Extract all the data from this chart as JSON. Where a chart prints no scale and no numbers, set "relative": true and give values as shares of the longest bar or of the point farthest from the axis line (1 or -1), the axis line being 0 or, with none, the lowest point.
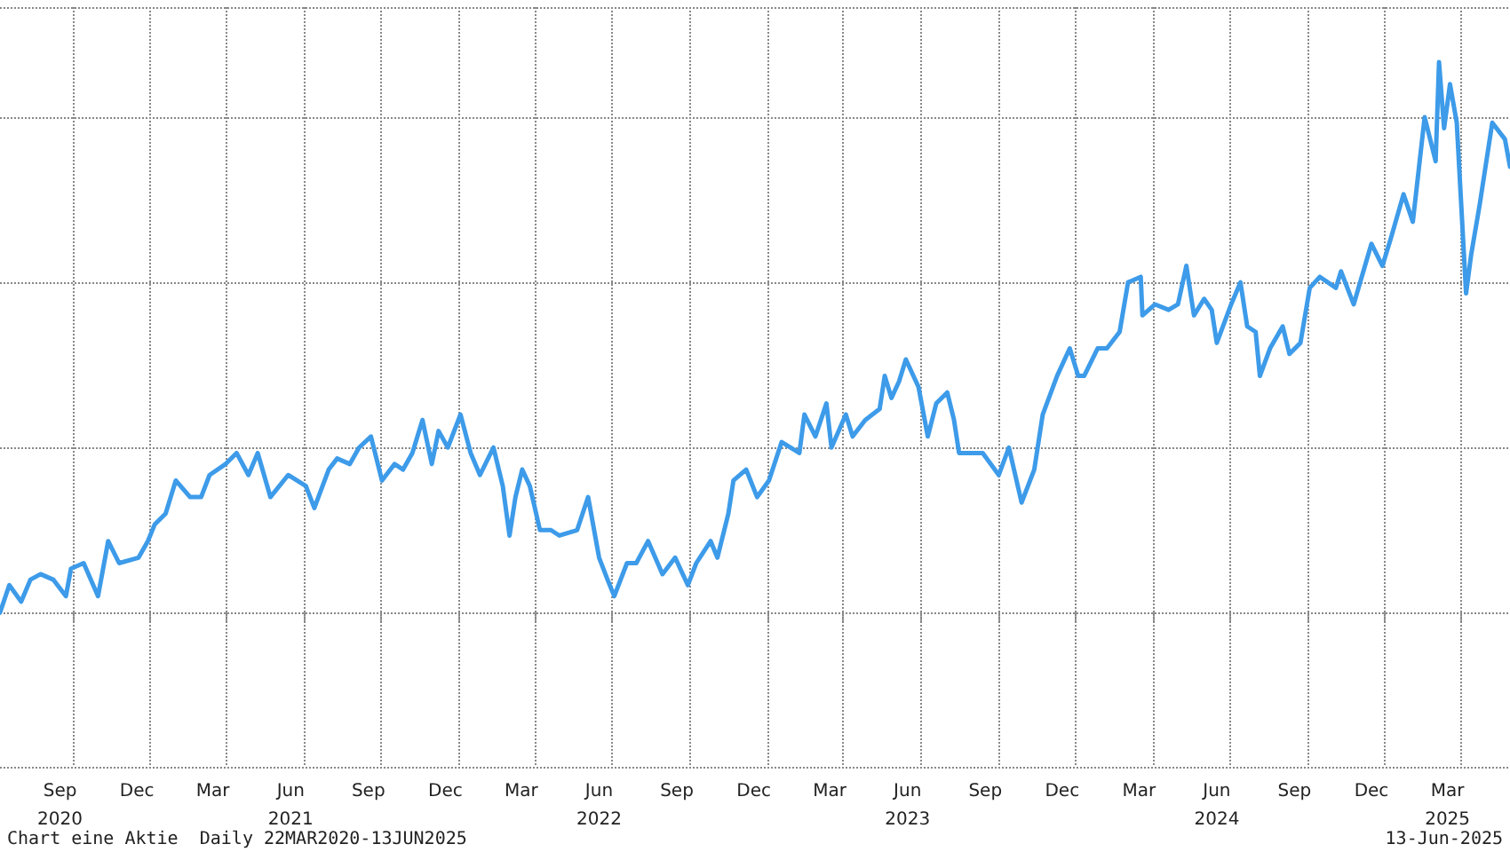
{
  "chart_data": {
    "type": "line",
    "relative": true,
    "color": "#3d9be9",
    "grid": true,
    "line_style": "solid",
    "marker": "none",
    "xlim": [
      "2020-07-07",
      "2025-05-29"
    ],
    "xticks": [
      {
        "value": "2020-09-16",
        "label": "Sep\n2020"
      },
      {
        "value": "2020-10-01",
        "label": null
      },
      {
        "value": "2020-12-16",
        "label": "Dec"
      },
      {
        "value": "2021-01-01",
        "label": null
      },
      {
        "value": "2021-03-16",
        "label": "Mar"
      },
      {
        "value": "2021-04-01",
        "label": null
      },
      {
        "value": "2021-06-16",
        "label": "Jun\n2021"
      },
      {
        "value": "2021-07-01",
        "label": null
      },
      {
        "value": "2021-09-16",
        "label": "Sep"
      },
      {
        "value": "2021-10-01",
        "label": null
      },
      {
        "value": "2021-12-16",
        "label": "Dec"
      },
      {
        "value": "2022-01-01",
        "label": null
      },
      {
        "value": "2022-03-16",
        "label": "Mar"
      },
      {
        "value": "2022-04-01",
        "label": null
      },
      {
        "value": "2022-06-16",
        "label": "Jun\n2022"
      },
      {
        "value": "2022-07-01",
        "label": null
      },
      {
        "value": "2022-09-16",
        "label": "Sep"
      },
      {
        "value": "2022-10-01",
        "label": null
      },
      {
        "value": "2022-12-16",
        "label": "Dec"
      },
      {
        "value": "2023-01-01",
        "label": null
      },
      {
        "value": "2023-03-16",
        "label": "Mar"
      },
      {
        "value": "2023-04-01",
        "label": null
      },
      {
        "value": "2023-06-16",
        "label": "Jun\n2023"
      },
      {
        "value": "2023-07-01",
        "label": null
      },
      {
        "value": "2023-09-16",
        "label": "Sep"
      },
      {
        "value": "2023-10-01",
        "label": null
      },
      {
        "value": "2023-12-16",
        "label": "Dec"
      },
      {
        "value": "2024-01-01",
        "label": null
      },
      {
        "value": "2024-03-16",
        "label": "Mar"
      },
      {
        "value": "2024-04-01",
        "label": null
      },
      {
        "value": "2024-06-16",
        "label": "Jun\n2024"
      },
      {
        "value": "2024-07-01",
        "label": null
      },
      {
        "value": "2024-09-16",
        "label": "Sep"
      },
      {
        "value": "2024-10-01",
        "label": null
      },
      {
        "value": "2024-12-16",
        "label": "Dec"
      },
      {
        "value": "2025-01-01",
        "label": null
      },
      {
        "value": "2025-03-16",
        "label": "Mar\n2025"
      },
      {
        "value": "2025-04-01",
        "label": null
      }
    ],
    "x": [
      "2020-07-07",
      "2020-07-18",
      "2020-08-01",
      "2020-08-12",
      "2020-08-24",
      "2020-09-08",
      "2020-09-23",
      "2020-09-29",
      "2020-10-14",
      "2020-10-31",
      "2020-11-12",
      "2020-11-25",
      "2020-12-18",
      "2020-12-29",
      "2021-01-06",
      "2021-01-19",
      "2021-01-31",
      "2021-02-17",
      "2021-03-02",
      "2021-03-12",
      "2021-03-31",
      "2021-04-13",
      "2021-04-27",
      "2021-05-08",
      "2021-05-23",
      "2021-06-13",
      "2021-07-04",
      "2021-07-14",
      "2021-07-31",
      "2021-08-10",
      "2021-08-25",
      "2021-09-05",
      "2021-09-19",
      "2021-10-02",
      "2021-10-17",
      "2021-10-27",
      "2021-11-07",
      "2021-11-19",
      "2021-11-30",
      "2021-12-08",
      "2021-12-19",
      "2022-01-03",
      "2022-01-15",
      "2022-01-26",
      "2022-02-11",
      "2022-02-22",
      "2022-03-02",
      "2022-03-09",
      "2022-03-17",
      "2022-03-26",
      "2022-04-07",
      "2022-04-20",
      "2022-04-30",
      "2022-05-21",
      "2022-06-03",
      "2022-06-16",
      "2022-06-26",
      "2022-07-04",
      "2022-07-19",
      "2022-07-30",
      "2022-08-13",
      "2022-08-30",
      "2022-09-14",
      "2022-09-29",
      "2022-10-09",
      "2022-10-26",
      "2022-11-03",
      "2022-11-16",
      "2022-11-22",
      "2022-12-07",
      "2022-12-20",
      "2023-01-03",
      "2023-01-18",
      "2023-02-08",
      "2023-02-14",
      "2023-02-27",
      "2023-03-12",
      "2023-03-18",
      "2023-04-04",
      "2023-04-12",
      "2023-04-27",
      "2023-05-14",
      "2023-05-20",
      "2023-05-28",
      "2023-06-06",
      "2023-06-14",
      "2023-06-29",
      "2023-07-10",
      "2023-07-20",
      "2023-08-02",
      "2023-08-10",
      "2023-08-16",
      "2023-08-31",
      "2023-09-13",
      "2023-10-02",
      "2023-10-14",
      "2023-10-29",
      "2023-11-13",
      "2023-11-23",
      "2023-12-10",
      "2023-12-25",
      "2024-01-04",
      "2024-01-11",
      "2024-01-27",
      "2024-02-07",
      "2024-02-22",
      "2024-03-03",
      "2024-03-18",
      "2024-03-20",
      "2024-04-04",
      "2024-04-20",
      "2024-05-01",
      "2024-05-11",
      "2024-05-20",
      "2024-06-01",
      "2024-06-10",
      "2024-06-16",
      "2024-07-03",
      "2024-07-14",
      "2024-07-22",
      "2024-08-01",
      "2024-08-06",
      "2024-08-18",
      "2024-09-02",
      "2024-09-10",
      "2024-09-23",
      "2024-10-04",
      "2024-10-16",
      "2024-11-04",
      "2024-11-10",
      "2024-11-25",
      "2024-12-16",
      "2024-12-29",
      "2025-01-08",
      "2025-01-23",
      "2025-02-03",
      "2025-02-17",
      "2025-03-02",
      "2025-03-06",
      "2025-03-12",
      "2025-03-19",
      "2025-03-27",
      "2025-04-07",
      "2025-04-13",
      "2025-04-23",
      "2025-05-08",
      "2025-05-23",
      "2025-05-29"
    ],
    "values": [
      0.0,
      0.05,
      0.02,
      0.06,
      0.07,
      0.06,
      0.03,
      0.08,
      0.09,
      0.03,
      0.13,
      0.09,
      0.1,
      0.13,
      0.16,
      0.18,
      0.24,
      0.21,
      0.21,
      0.25,
      0.27,
      0.29,
      0.25,
      0.29,
      0.21,
      0.25,
      0.23,
      0.19,
      0.26,
      0.28,
      0.27,
      0.3,
      0.32,
      0.24,
      0.27,
      0.26,
      0.29,
      0.35,
      0.27,
      0.33,
      0.3,
      0.36,
      0.29,
      0.25,
      0.3,
      0.23,
      0.14,
      0.21,
      0.26,
      0.23,
      0.15,
      0.15,
      0.14,
      0.15,
      0.21,
      0.1,
      0.06,
      0.03,
      0.09,
      0.09,
      0.13,
      0.07,
      0.1,
      0.05,
      0.09,
      0.13,
      0.1,
      0.18,
      0.24,
      0.26,
      0.21,
      0.24,
      0.31,
      0.29,
      0.36,
      0.32,
      0.38,
      0.3,
      0.36,
      0.32,
      0.35,
      0.37,
      0.43,
      0.39,
      0.42,
      0.46,
      0.41,
      0.32,
      0.38,
      0.4,
      0.35,
      0.29,
      0.29,
      0.29,
      0.25,
      0.3,
      0.2,
      0.26,
      0.36,
      0.43,
      0.48,
      0.43,
      0.43,
      0.48,
      0.48,
      0.51,
      0.6,
      0.61,
      0.54,
      0.56,
      0.55,
      0.56,
      0.63,
      0.54,
      0.57,
      0.55,
      0.49,
      0.56,
      0.6,
      0.52,
      0.51,
      0.43,
      0.48,
      0.52,
      0.47,
      0.49,
      0.59,
      0.61,
      0.59,
      0.62,
      0.56,
      0.67,
      0.63,
      0.68,
      0.76,
      0.71,
      0.9,
      0.82,
      1.0,
      0.88,
      0.96,
      0.89,
      0.58,
      0.65,
      0.74,
      0.89,
      0.86,
      0.81
    ],
    "annotations": [
      "Chart eine Aktie  Daily 22MAR2020-13JUN2025",
      "13-Jun-2025"
    ]
  }
}
